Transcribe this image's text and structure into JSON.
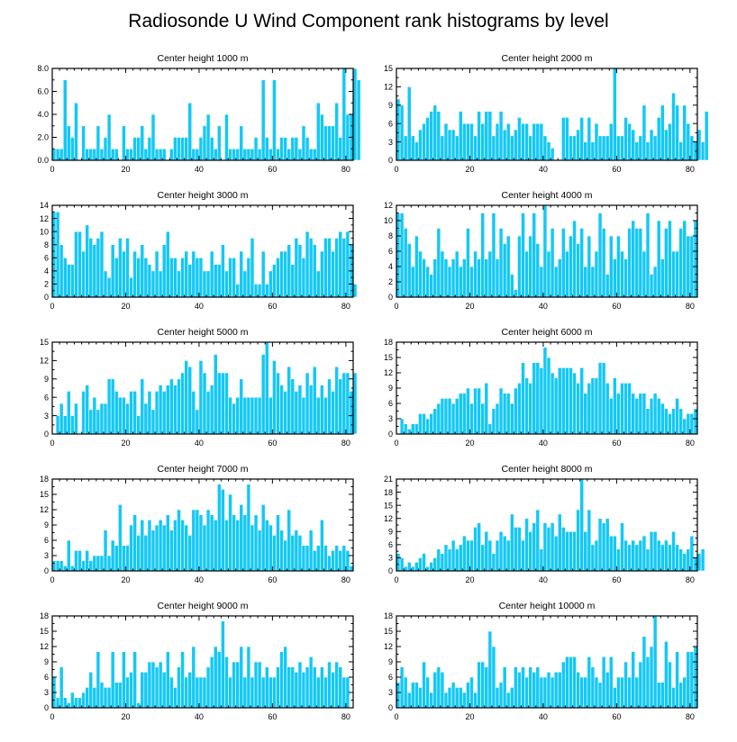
{
  "title": "Radiosonde U Wind Component rank histograms by level",
  "colors": {
    "bar": "#14C8F5",
    "bar_edge": "#FFFFFF",
    "axis": "#000000"
  },
  "chart_data": [
    {
      "type": "bar",
      "title": "Center height 1000 m",
      "xlim": [
        0,
        82
      ],
      "xticks": [
        0,
        20,
        40,
        60,
        80
      ],
      "ylim": [
        0,
        8
      ],
      "yticks": [
        0,
        2,
        4,
        6,
        8
      ],
      "ytick_labels": [
        "0.0",
        "2.0",
        "4.0",
        "6.0",
        "8.0"
      ],
      "values": [
        1,
        1,
        1,
        7,
        3,
        2,
        5,
        0,
        3,
        1,
        1,
        1,
        3,
        1,
        2,
        4,
        1,
        1,
        0,
        3,
        1,
        1,
        2,
        2,
        3,
        1,
        2,
        4,
        1,
        1,
        1,
        0,
        1,
        2,
        2,
        2,
        2,
        5,
        1,
        1,
        2,
        3,
        4,
        2,
        1,
        3,
        0,
        4,
        1,
        1,
        1,
        3,
        1,
        1,
        1,
        2,
        1,
        7,
        2,
        1,
        7,
        1,
        2,
        2,
        1,
        2,
        2,
        1,
        3,
        2,
        1,
        1,
        5,
        4,
        3,
        3,
        3,
        5,
        2,
        8,
        4,
        4,
        8,
        7
      ]
    },
    {
      "type": "bar",
      "title": "Center height 2000 m",
      "xlim": [
        0,
        82
      ],
      "xticks": [
        0,
        20,
        40,
        60,
        80
      ],
      "ylim": [
        0,
        15
      ],
      "yticks": [
        0,
        3,
        6,
        9,
        12,
        15
      ],
      "ytick_labels": [
        "0",
        "3",
        "6",
        "9",
        "12",
        "15"
      ],
      "values": [
        10,
        9,
        4,
        12,
        4,
        3,
        5,
        6,
        7,
        8,
        9,
        8,
        4,
        6,
        5,
        5,
        4,
        8,
        6,
        6,
        6,
        4,
        8,
        6,
        8,
        8,
        4,
        6,
        8,
        5,
        6,
        4,
        5,
        7,
        6,
        6,
        4,
        6,
        6,
        6,
        4,
        3,
        2,
        0,
        0,
        7,
        7,
        4,
        4,
        5,
        7,
        3,
        7,
        3,
        6,
        4,
        4,
        4,
        6,
        15,
        4,
        4,
        7,
        6,
        5,
        3,
        4,
        9,
        3,
        5,
        4,
        7,
        9,
        5,
        6,
        11,
        9,
        3,
        9,
        6,
        4,
        3,
        5,
        3,
        8
      ]
    },
    {
      "type": "bar",
      "title": "Center height 3000 m",
      "xlim": [
        0,
        82
      ],
      "xticks": [
        0,
        20,
        40,
        60,
        80
      ],
      "ylim": [
        0,
        14
      ],
      "yticks": [
        0,
        2,
        4,
        6,
        8,
        10,
        12,
        14
      ],
      "ytick_labels": [
        "0",
        "2",
        "4",
        "6",
        "8",
        "10",
        "12",
        "14"
      ],
      "values": [
        13,
        13,
        8,
        6,
        5,
        5,
        10,
        10,
        7,
        11,
        9,
        8,
        9,
        10,
        4,
        3,
        8,
        6,
        9,
        7,
        9,
        3,
        7,
        6,
        8,
        6,
        5,
        4,
        7,
        4,
        8,
        10,
        6,
        6,
        4,
        6,
        7,
        5,
        7,
        6,
        6,
        4,
        4,
        7,
        5,
        5,
        8,
        4,
        6,
        6,
        2,
        7,
        4,
        6,
        9,
        2,
        2,
        7,
        2,
        4,
        5,
        6,
        7,
        7,
        8,
        5,
        9,
        8,
        6,
        10,
        9,
        8,
        4,
        7,
        9,
        9,
        7,
        9,
        10,
        9,
        10,
        8,
        2
      ]
    },
    {
      "type": "bar",
      "title": "Center height 4000 m",
      "xlim": [
        0,
        82
      ],
      "xticks": [
        0,
        20,
        40,
        60,
        80
      ],
      "ylim": [
        0,
        12
      ],
      "yticks": [
        0,
        2,
        4,
        6,
        8,
        10,
        12
      ],
      "ytick_labels": [
        "0",
        "2",
        "4",
        "6",
        "8",
        "10",
        "12"
      ],
      "values": [
        11,
        11,
        9,
        7,
        4,
        8,
        6,
        5,
        4,
        3,
        5,
        9,
        6,
        5,
        4,
        5,
        6,
        4,
        5,
        9,
        4,
        6,
        5,
        11,
        5,
        6,
        11,
        5,
        9,
        7,
        8,
        3,
        1,
        8,
        11,
        6,
        8,
        11,
        7,
        4,
        12,
        6,
        9,
        4,
        5,
        9,
        6,
        8,
        10,
        7,
        9,
        4,
        8,
        4,
        6,
        11,
        9,
        3,
        8,
        5,
        8,
        6,
        5,
        9,
        10,
        9,
        9,
        6,
        11,
        3,
        4,
        10,
        5,
        9,
        10,
        6,
        6,
        9,
        10,
        8,
        8,
        10
      ]
    },
    {
      "type": "bar",
      "title": "Center height 5000 m",
      "xlim": [
        0,
        82
      ],
      "xticks": [
        0,
        20,
        40,
        60,
        80
      ],
      "ylim": [
        0,
        15
      ],
      "yticks": [
        0,
        3,
        6,
        9,
        12,
        15
      ],
      "ytick_labels": [
        "0",
        "3",
        "6",
        "9",
        "12",
        "15"
      ],
      "values": [
        0,
        3,
        5,
        3,
        7,
        3,
        5,
        0,
        7,
        8,
        4,
        6,
        4,
        5,
        5,
        9,
        9,
        7,
        6,
        6,
        5,
        7,
        7,
        3,
        9,
        5,
        7,
        4,
        7,
        8,
        7,
        8,
        9,
        8,
        9,
        10,
        12,
        11,
        7,
        4,
        12,
        10,
        7,
        8,
        13,
        10,
        10,
        10,
        6,
        5,
        6,
        9,
        6,
        6,
        6,
        6,
        6,
        13,
        15,
        6,
        12,
        10,
        8,
        7,
        11,
        9,
        7,
        8,
        6,
        10,
        8,
        11,
        6,
        8,
        6,
        9,
        7,
        11,
        9,
        10,
        10,
        7,
        10
      ]
    },
    {
      "type": "bar",
      "title": "Center height 6000 m",
      "xlim": [
        0,
        82
      ],
      "xticks": [
        0,
        20,
        40,
        60,
        80
      ],
      "ylim": [
        0,
        18
      ],
      "yticks": [
        0,
        3,
        6,
        9,
        12,
        15,
        18
      ],
      "ytick_labels": [
        "0",
        "3",
        "6",
        "9",
        "12",
        "15",
        "18"
      ],
      "values": [
        0,
        3,
        2,
        1,
        2,
        2,
        4,
        4,
        3,
        4,
        5,
        6,
        7,
        7,
        7,
        6,
        7,
        8,
        8,
        9,
        6,
        9,
        9,
        6,
        10,
        2,
        5,
        6,
        9,
        8,
        8,
        6,
        9,
        10,
        14,
        11,
        10,
        14,
        14,
        13,
        17,
        15,
        12,
        11,
        13,
        13,
        13,
        13,
        12,
        10,
        13,
        8,
        10,
        11,
        11,
        14,
        14,
        10,
        7,
        11,
        8,
        10,
        10,
        10,
        8,
        7,
        8,
        8,
        5,
        7,
        8,
        7,
        6,
        5,
        4,
        5,
        7,
        5,
        3,
        4,
        4,
        5
      ]
    },
    {
      "type": "bar",
      "title": "Center height 7000 m",
      "xlim": [
        0,
        82
      ],
      "xticks": [
        0,
        20,
        40,
        60,
        80
      ],
      "ylim": [
        0,
        18
      ],
      "yticks": [
        0,
        3,
        6,
        9,
        12,
        15,
        18
      ],
      "ytick_labels": [
        "0",
        "3",
        "6",
        "9",
        "12",
        "15",
        "18"
      ],
      "values": [
        2,
        2,
        2,
        1,
        6,
        1,
        4,
        4,
        2,
        4,
        2,
        3,
        3,
        3,
        8,
        3,
        6,
        5,
        13,
        5,
        5,
        9,
        11,
        7,
        10,
        7,
        10,
        8,
        9,
        10,
        9,
        11,
        8,
        10,
        12,
        10,
        9,
        7,
        12,
        12,
        11,
        9,
        12,
        11,
        10,
        17,
        16,
        10,
        15,
        11,
        10,
        13,
        11,
        17,
        9,
        11,
        8,
        13,
        10,
        9,
        7,
        11,
        8,
        6,
        12,
        7,
        8,
        7,
        5,
        5,
        8,
        4,
        5,
        10,
        5,
        3,
        4,
        5,
        4,
        5,
        4,
        1
      ]
    },
    {
      "type": "bar",
      "title": "Center height 8000 m",
      "xlim": [
        0,
        82
      ],
      "xticks": [
        0,
        20,
        40,
        60,
        80
      ],
      "ylim": [
        0,
        21
      ],
      "yticks": [
        0,
        3,
        6,
        9,
        12,
        15,
        18,
        21
      ],
      "ytick_labels": [
        "0",
        "3",
        "6",
        "9",
        "12",
        "15",
        "18",
        "21"
      ],
      "values": [
        4,
        3,
        1,
        2,
        1,
        2,
        3,
        4,
        1,
        2,
        3,
        5,
        4,
        6,
        5,
        7,
        5,
        6,
        8,
        7,
        7,
        10,
        11,
        6,
        9,
        7,
        4,
        7,
        9,
        8,
        7,
        13,
        10,
        10,
        7,
        12,
        9,
        11,
        14,
        5,
        11,
        10,
        11,
        8,
        13,
        10,
        9,
        9,
        9,
        14,
        21,
        9,
        14,
        6,
        7,
        12,
        11,
        12,
        8,
        8,
        5,
        11,
        7,
        6,
        7,
        6,
        7,
        8,
        5,
        9,
        9,
        7,
        6,
        7,
        6,
        9,
        6,
        5,
        4,
        5,
        8,
        3,
        4,
        5
      ]
    },
    {
      "type": "bar",
      "title": "Center height 9000 m",
      "xlim": [
        0,
        82
      ],
      "xticks": [
        0,
        20,
        40,
        60,
        80
      ],
      "ylim": [
        0,
        18
      ],
      "yticks": [
        0,
        3,
        6,
        9,
        12,
        15,
        18
      ],
      "ytick_labels": [
        "0",
        "3",
        "6",
        "9",
        "12",
        "15",
        "18"
      ],
      "values": [
        6,
        2,
        8,
        2,
        1,
        3,
        2,
        2,
        3,
        4,
        7,
        4,
        11,
        5,
        4,
        4,
        11,
        5,
        5,
        11,
        6,
        7,
        11,
        1,
        7,
        7,
        9,
        9,
        8,
        9,
        7,
        11,
        6,
        4,
        8,
        11,
        6,
        7,
        12,
        6,
        6,
        6,
        8,
        10,
        12,
        11,
        17,
        10,
        6,
        9,
        9,
        12,
        6,
        12,
        6,
        9,
        9,
        6,
        8,
        6,
        6,
        8,
        11,
        12,
        8,
        8,
        7,
        9,
        7,
        8,
        10,
        8,
        6,
        8,
        6,
        9,
        7,
        9,
        8,
        6,
        6
      ]
    },
    {
      "type": "bar",
      "title": "Center height 10000 m",
      "xlim": [
        0,
        82
      ],
      "xticks": [
        0,
        20,
        40,
        60,
        80
      ],
      "ylim": [
        0,
        18
      ],
      "yticks": [
        0,
        3,
        6,
        9,
        12,
        15,
        18
      ],
      "ytick_labels": [
        "0",
        "3",
        "6",
        "9",
        "12",
        "15",
        "18"
      ],
      "values": [
        5,
        8,
        6,
        3,
        5,
        5,
        4,
        9,
        6,
        3,
        7,
        8,
        7,
        3,
        4,
        5,
        4,
        4,
        3,
        5,
        6,
        3,
        9,
        9,
        8,
        15,
        12,
        4,
        5,
        8,
        3,
        4,
        8,
        7,
        8,
        6,
        8,
        7,
        8,
        6,
        6,
        7,
        6,
        7,
        7,
        9,
        10,
        10,
        10,
        7,
        6,
        6,
        10,
        8,
        6,
        5,
        10,
        7,
        10,
        4,
        6,
        6,
        9,
        6,
        11,
        6,
        9,
        14,
        10,
        12,
        18,
        5,
        5,
        13,
        9,
        4,
        11,
        5,
        6,
        11,
        11,
        12
      ]
    }
  ]
}
